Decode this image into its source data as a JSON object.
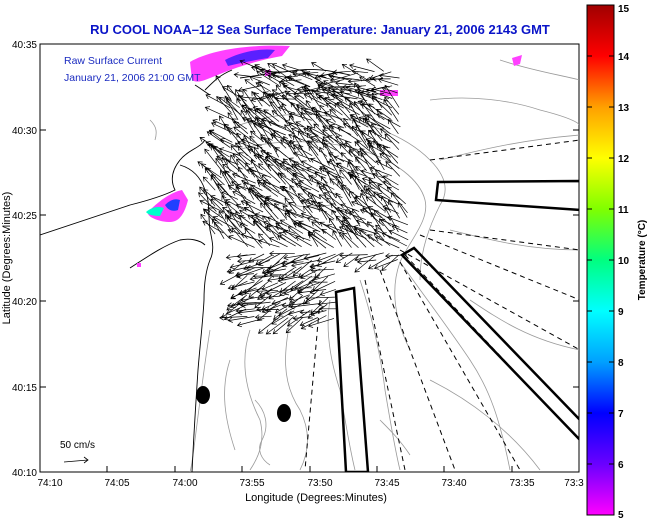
{
  "title": "RU COOL  NOAA–12  Sea Surface Temperature:  January 21, 2006 2143 GMT",
  "annotation": {
    "line1": "Raw Surface Current",
    "line2": "January 21, 2006 21:00 GMT"
  },
  "scale_label": "50 cm/s",
  "axes": {
    "xlabel": "Longitude (Degrees:Minutes)",
    "ylabel": "Latitude (Degrees:Minutes)",
    "x_ticks": [
      "74:10",
      "74:05",
      "74:00",
      "73:55",
      "73:50",
      "73:45",
      "73:40",
      "73:35",
      "73:3"
    ],
    "y_ticks": [
      "40:35",
      "40:30",
      "40:25",
      "40:20",
      "40:15",
      "40:10"
    ]
  },
  "colorbar": {
    "label": "Temperature (°C)",
    "min": 5,
    "max": 15,
    "ticks": [
      "15",
      "14",
      "13",
      "12",
      "11",
      "10",
      "9",
      "8",
      "7",
      "6",
      "5"
    ],
    "colors": [
      "#ff00ff",
      "#6a00ff",
      "#0000ff",
      "#00a0ff",
      "#00ffff",
      "#00ff80",
      "#80ff00",
      "#ffff00",
      "#ffa000",
      "#ff0000",
      "#a00000"
    ]
  },
  "colors": {
    "title": "#0a14c8",
    "annotation": "#1a2bc0",
    "vectors": "#000000",
    "bathymetry": "#999999"
  }
}
